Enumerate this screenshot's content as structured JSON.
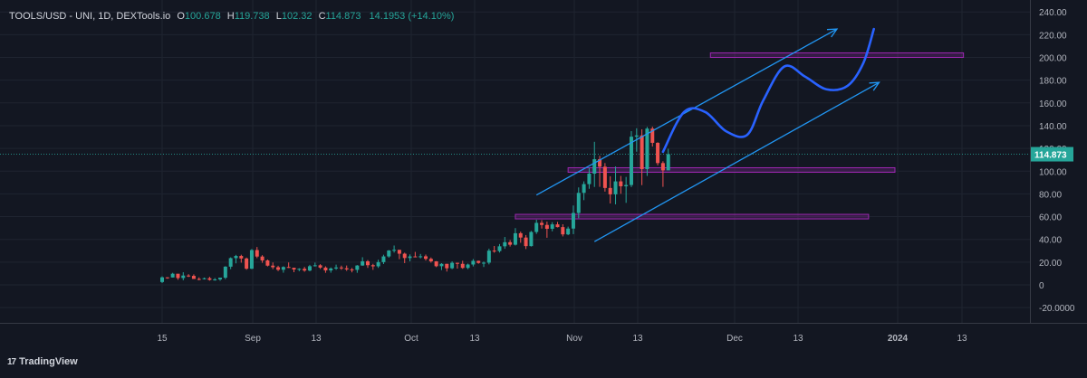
{
  "header": {
    "symbol": "TOOLS/USD - UNI, 1D, DEXTools.io",
    "open_label": "O",
    "open": "100.678",
    "high_label": "H",
    "high": "119.738",
    "low_label": "L",
    "low": "102.32",
    "close_label": "C",
    "close": "114.873",
    "change": "14.1953 (+14.10%)"
  },
  "brand": {
    "logo": "17",
    "name": "TradingView"
  },
  "colors": {
    "up": "#26a69a",
    "down": "#ef5350",
    "channel": "#2196f3",
    "path": "#2962ff",
    "zone": "#9c27b0",
    "background": "#131722"
  },
  "chart_data": {
    "type": "candlestick",
    "x_tick_labels": [
      "15",
      "Sep",
      "13",
      "Oct",
      "13",
      "Nov",
      "13",
      "Dec",
      "13",
      "2024",
      "13"
    ],
    "y_tick_labels": [
      "240.00",
      "220.00",
      "200.00",
      "180.00",
      "160.00",
      "140.00",
      "120.00",
      "100.00",
      "80.00",
      "60.00",
      "40.00",
      "20.00",
      "0",
      "-20.0000"
    ],
    "ylim": [
      -30,
      242
    ],
    "last_price": {
      "value": 114.873,
      "label": "114.873"
    },
    "candles": [
      [
        2.5,
        7.5,
        1.6,
        6.6
      ],
      [
        6.6,
        6.7,
        5.4,
        6.5
      ],
      [
        6.5,
        10.6,
        6.4,
        9.8
      ],
      [
        9.8,
        9.6,
        4.5,
        6.0
      ],
      [
        6.0,
        11.1,
        4.0,
        8.2
      ],
      [
        8.2,
        9.4,
        6.9,
        7.9
      ],
      [
        7.9,
        9.2,
        5.2,
        5.2
      ],
      [
        5.2,
        6.6,
        4.0,
        5.1
      ],
      [
        5.1,
        6.4,
        4.7,
        5.8
      ],
      [
        5.8,
        7.1,
        3.7,
        4.4
      ],
      [
        4.4,
        6.0,
        3.7,
        4.8
      ],
      [
        4.8,
        6.3,
        3.6,
        6.3
      ],
      [
        6.3,
        16.4,
        5.0,
        16.0
      ],
      [
        16.0,
        24.2,
        13.8,
        23.5
      ],
      [
        23.5,
        26.4,
        18.9,
        25.4
      ],
      [
        25.4,
        26.5,
        19.5,
        23.2
      ],
      [
        23.2,
        24.0,
        13.3,
        14.2
      ],
      [
        14.2,
        31.5,
        13.8,
        30.6
      ],
      [
        30.6,
        33.3,
        23.5,
        24.9
      ],
      [
        24.9,
        26.1,
        19.4,
        21.5
      ],
      [
        21.5,
        22.3,
        16.2,
        16.9
      ],
      [
        16.9,
        19.7,
        13.8,
        15.5
      ],
      [
        15.5,
        16.8,
        12.1,
        13.3
      ],
      [
        13.3,
        16.3,
        10.7,
        15.7
      ],
      [
        15.7,
        19.7,
        14.8,
        15.0
      ],
      [
        15.0,
        15.1,
        11.1,
        13.5
      ],
      [
        13.5,
        14.6,
        12.0,
        14.1
      ],
      [
        14.1,
        15.8,
        11.5,
        12.6
      ],
      [
        12.6,
        17.6,
        11.9,
        16.4
      ],
      [
        16.4,
        19.6,
        16.1,
        17.2
      ],
      [
        17.2,
        18.2,
        14.0,
        15.2
      ],
      [
        15.2,
        16.3,
        10.6,
        12.7
      ],
      [
        12.7,
        15.3,
        10.7,
        14.4
      ],
      [
        14.4,
        17.8,
        13.2,
        15.3
      ],
      [
        15.3,
        16.9,
        13.2,
        14.6
      ],
      [
        14.6,
        17.0,
        12.3,
        13.6
      ],
      [
        13.6,
        14.8,
        11.0,
        13.2
      ],
      [
        13.2,
        17.4,
        10.6,
        17.0
      ],
      [
        17.0,
        24.3,
        16.8,
        20.7
      ],
      [
        20.7,
        21.8,
        14.9,
        17.3
      ],
      [
        17.3,
        18.5,
        13.2,
        16.3
      ],
      [
        16.3,
        22.1,
        14.9,
        20.0
      ],
      [
        20.0,
        26.5,
        18.3,
        25.0
      ],
      [
        25.0,
        30.6,
        23.9,
        30.2
      ],
      [
        30.2,
        34.6,
        28.4,
        30.8
      ],
      [
        30.8,
        30.8,
        22.6,
        27.4
      ],
      [
        27.4,
        28.3,
        19.1,
        23.6
      ],
      [
        23.6,
        26.8,
        20.7,
        25.0
      ],
      [
        25.0,
        29.0,
        24.2,
        24.5
      ],
      [
        24.5,
        27.2,
        23.3,
        25.1
      ],
      [
        25.1,
        26.6,
        21.4,
        22.9
      ],
      [
        22.9,
        24.1,
        19.5,
        20.7
      ],
      [
        20.7,
        20.9,
        15.6,
        16.4
      ],
      [
        16.4,
        19.1,
        13.0,
        18.5
      ],
      [
        18.5,
        18.5,
        11.7,
        14.6
      ],
      [
        14.6,
        20.7,
        13.8,
        19.4
      ],
      [
        19.4,
        19.5,
        14.3,
        18.5
      ],
      [
        18.5,
        21.2,
        14.1,
        14.9
      ],
      [
        14.9,
        18.7,
        13.8,
        17.9
      ],
      [
        17.9,
        22.7,
        16.2,
        21.1
      ],
      [
        21.1,
        21.3,
        18.6,
        19.3
      ],
      [
        19.3,
        20.5,
        15.7,
        19.5
      ],
      [
        19.5,
        31.8,
        18.0,
        30.1
      ],
      [
        30.1,
        34.2,
        28.3,
        29.7
      ],
      [
        29.7,
        35.9,
        28.4,
        33.9
      ],
      [
        33.9,
        42.1,
        31.7,
        37.5
      ],
      [
        37.5,
        39.4,
        33.7,
        35.3
      ],
      [
        35.3,
        49.9,
        34.6,
        45.4
      ],
      [
        45.4,
        46.8,
        37.0,
        41.6
      ],
      [
        41.6,
        43.8,
        31.5,
        34.1
      ],
      [
        34.1,
        47.4,
        33.7,
        46.5
      ],
      [
        46.5,
        57.3,
        44.8,
        54.5
      ],
      [
        54.5,
        56.9,
        49.5,
        52.7
      ],
      [
        52.7,
        55.6,
        41.4,
        49.3
      ],
      [
        49.3,
        55.1,
        47.1,
        53.2
      ],
      [
        53.2,
        55.4,
        50.5,
        50.8
      ],
      [
        50.8,
        53.3,
        42.6,
        44.4
      ],
      [
        44.4,
        51.2,
        43.7,
        49.5
      ],
      [
        49.5,
        69.8,
        44.6,
        63.2
      ],
      [
        63.2,
        85.7,
        58.6,
        80.9
      ],
      [
        80.9,
        91.0,
        74.5,
        88.6
      ],
      [
        88.6,
        102.9,
        84.5,
        97.8
      ],
      [
        97.8,
        125.8,
        86.1,
        110.5
      ],
      [
        110.5,
        113.5,
        86.2,
        103.9
      ],
      [
        103.9,
        107.1,
        82.0,
        85.2
      ],
      [
        85.2,
        95.5,
        71.6,
        79.6
      ],
      [
        79.6,
        104.1,
        70.8,
        91.0
      ],
      [
        91.0,
        95.8,
        80.1,
        86.7
      ],
      [
        86.7,
        94.9,
        72.1,
        87.8
      ],
      [
        87.8,
        135.2,
        86.0,
        130.3
      ],
      [
        130.3,
        137.7,
        117.1,
        131.4
      ],
      [
        131.4,
        136.8,
        87.7,
        101.8
      ],
      [
        101.8,
        138.9,
        95.8,
        137.4
      ],
      [
        137.4,
        139.1,
        121.6,
        124.9
      ],
      [
        124.9,
        125.4,
        105.1,
        107.1
      ],
      [
        107.1,
        108.7,
        86.2,
        100.7
      ],
      [
        100.7,
        119.7,
        102.3,
        114.9
      ]
    ],
    "annotations": {
      "channel_lines": [
        {
          "from": [
            "2023-10-25",
            79
          ],
          "to": [
            "2023-12-21",
            225
          ]
        },
        {
          "from": [
            "2023-11-05",
            38
          ],
          "to": [
            "2023-12-29",
            178
          ]
        }
      ],
      "zones": [
        {
          "from": "2023-10-21",
          "to": "2023-12-27",
          "bottom": 58,
          "top": 62
        },
        {
          "from": "2023-10-31",
          "to": "2024-01-01",
          "bottom": 99,
          "top": 103
        },
        {
          "from": "2023-11-27",
          "to": "2024-01-14",
          "bottom": 200,
          "top": 204
        }
      ],
      "projection_path": [
        [
          "2023-11-18",
          117
        ],
        [
          "2023-11-22",
          152
        ],
        [
          "2023-11-26",
          152
        ],
        [
          "2023-11-30",
          135
        ],
        [
          "2023-12-04",
          132
        ],
        [
          "2023-12-07",
          162
        ],
        [
          "2023-12-11",
          192
        ],
        [
          "2023-12-15",
          183
        ],
        [
          "2023-12-19",
          172
        ],
        [
          "2023-12-23",
          175
        ],
        [
          "2023-12-26",
          195
        ],
        [
          "2023-12-28",
          225
        ]
      ]
    }
  }
}
